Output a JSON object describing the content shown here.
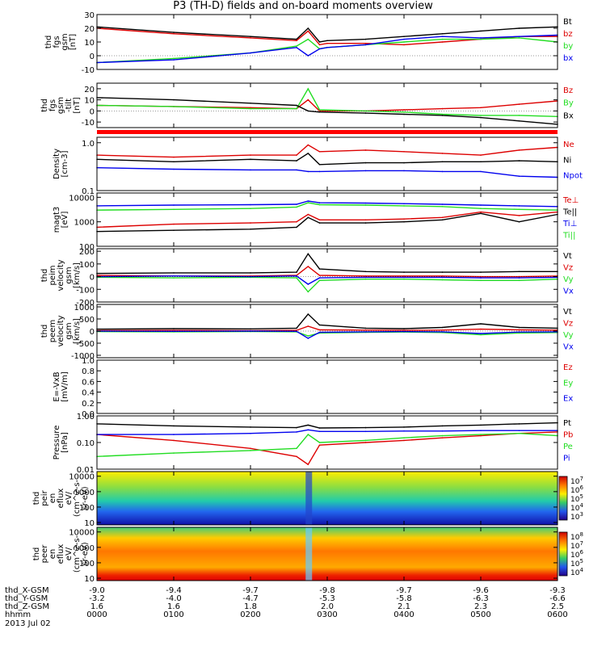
{
  "title": "P3 (TH-D) fields and on-board moments overview",
  "colors": {
    "black": "#000000",
    "red": "#dd0000",
    "green": "#22dd22",
    "blue": "#0000ee",
    "bar": "#ff0000"
  },
  "chart_data": [
    {
      "type": "line",
      "ylabel": [
        "thd",
        "fgs",
        "gsm",
        "[nT]"
      ],
      "ylim": [
        -10,
        30
      ],
      "yticks": [
        "30",
        "20",
        "10",
        "0",
        "-10"
      ],
      "legend": [
        "Bt",
        "bz",
        "by",
        "bx"
      ],
      "legend_colors": [
        "black",
        "red",
        "green",
        "blue"
      ],
      "series": [
        {
          "name": "Bt",
          "color": "black",
          "x": [
            0,
            1,
            2,
            2.6,
            2.75,
            2.9,
            3.0,
            3.5,
            4,
            4.5,
            5,
            5.5,
            6
          ],
          "y": [
            21,
            17,
            14,
            12,
            20,
            10,
            11,
            12,
            14,
            16,
            18,
            20,
            21
          ]
        },
        {
          "name": "bz",
          "color": "red",
          "x": [
            0,
            1,
            2,
            2.6,
            2.75,
            2.9,
            3.0,
            3.5,
            4,
            4.5,
            5,
            5.5,
            6
          ],
          "y": [
            20,
            16,
            13,
            11,
            18,
            8,
            9,
            9,
            8,
            10,
            12,
            14,
            14
          ]
        },
        {
          "name": "by",
          "color": "green",
          "x": [
            0,
            1,
            2,
            2.6,
            2.75,
            2.9,
            3.0,
            3.5,
            4,
            4.5,
            5,
            5.5,
            6
          ],
          "y": [
            -5,
            -2,
            2,
            7,
            12,
            5,
            6,
            8,
            10,
            12,
            12,
            13,
            10
          ]
        },
        {
          "name": "bx",
          "color": "blue",
          "x": [
            0,
            1,
            2,
            2.6,
            2.75,
            2.9,
            3.0,
            3.5,
            4,
            4.5,
            5,
            5.5,
            6
          ],
          "y": [
            -5,
            -3,
            2,
            6,
            0,
            5,
            6,
            8,
            12,
            14,
            13,
            14,
            15
          ]
        }
      ]
    },
    {
      "type": "line",
      "ylabel": [
        "thd",
        "fgs",
        "gsm",
        "-tilt",
        "[nT]"
      ],
      "ylim": [
        -15,
        25
      ],
      "yticks": [
        "20",
        "10",
        "0",
        "-10"
      ],
      "legend": [
        "Bz",
        "By",
        "Bx"
      ],
      "legend_colors": [
        "red",
        "green",
        "black"
      ],
      "series": [
        {
          "name": "Bz",
          "color": "red",
          "x": [
            0,
            1,
            2,
            2.6,
            2.75,
            2.9,
            3.5,
            4,
            4.5,
            5,
            5.5,
            6
          ],
          "y": [
            5,
            4,
            3,
            2,
            10,
            0,
            0,
            1,
            2,
            3,
            6,
            9
          ]
        },
        {
          "name": "By",
          "color": "green",
          "x": [
            0,
            1,
            2,
            2.6,
            2.75,
            2.9,
            3.5,
            4,
            4.5,
            5,
            5.5,
            6
          ],
          "y": [
            5,
            4,
            2,
            2,
            20,
            1,
            0,
            -1,
            -3,
            -4,
            -4,
            -5
          ]
        },
        {
          "name": "Bx",
          "color": "black",
          "x": [
            0,
            1,
            2,
            2.6,
            2.75,
            2.9,
            3.5,
            4,
            4.5,
            5,
            5.5,
            6
          ],
          "y": [
            12,
            10,
            7,
            5,
            0,
            -1,
            -2,
            -3,
            -4,
            -6,
            -9,
            -12
          ]
        }
      ]
    },
    {
      "type": "line",
      "ylabel": [
        "Density",
        "[cm-3]"
      ],
      "ylog": true,
      "ylim": [
        0.1,
        1.3
      ],
      "yticks": [
        "1.0",
        "0.1"
      ],
      "legend": [
        "Ne",
        "Ni",
        "Npot"
      ],
      "legend_colors": [
        "red",
        "black",
        "blue"
      ],
      "series": [
        {
          "name": "Ne",
          "color": "red",
          "x": [
            0,
            1,
            2,
            2.6,
            2.75,
            2.9,
            3.5,
            4,
            4.5,
            5,
            5.5,
            6
          ],
          "y": [
            0.55,
            0.5,
            0.55,
            0.55,
            0.9,
            0.65,
            0.7,
            0.65,
            0.6,
            0.55,
            0.7,
            0.8
          ]
        },
        {
          "name": "Ni",
          "color": "black",
          "x": [
            0,
            1,
            2,
            2.6,
            2.75,
            2.9,
            3.5,
            4,
            4.5,
            5,
            5.5,
            6
          ],
          "y": [
            0.45,
            0.4,
            0.45,
            0.42,
            0.6,
            0.35,
            0.38,
            0.38,
            0.4,
            0.4,
            0.42,
            0.4
          ]
        },
        {
          "name": "Npot",
          "color": "blue",
          "x": [
            0,
            1,
            2,
            2.6,
            2.75,
            2.9,
            3.5,
            4,
            4.5,
            5,
            5.5,
            6
          ],
          "y": [
            0.3,
            0.28,
            0.27,
            0.27,
            0.25,
            0.25,
            0.26,
            0.26,
            0.25,
            0.25,
            0.2,
            0.19
          ]
        }
      ]
    },
    {
      "type": "line",
      "ylabel": [
        "magt3",
        "[eV]"
      ],
      "ylog": true,
      "ylim": [
        100,
        15000
      ],
      "yticks": [
        "10000",
        "1000",
        "100"
      ],
      "legend": [
        "Te⊥",
        "Te||",
        "Ti⊥",
        "Ti||"
      ],
      "legend_colors": [
        "red",
        "black",
        "blue",
        "green"
      ],
      "series": [
        {
          "name": "Te⊥",
          "color": "red",
          "x": [
            0,
            1,
            2,
            2.6,
            2.75,
            2.9,
            3.5,
            4,
            4.5,
            5,
            5.5,
            6
          ],
          "y": [
            600,
            800,
            900,
            1000,
            2000,
            1200,
            1200,
            1300,
            1500,
            2500,
            1800,
            2500
          ]
        },
        {
          "name": "Te||",
          "color": "black",
          "x": [
            0,
            1,
            2,
            2.6,
            2.75,
            2.9,
            3.5,
            4,
            4.5,
            5,
            5.5,
            6
          ],
          "y": [
            400,
            450,
            500,
            600,
            1500,
            900,
            900,
            1000,
            1200,
            2200,
            1000,
            2000
          ]
        },
        {
          "name": "Ti⊥",
          "color": "blue",
          "x": [
            0,
            1,
            2,
            2.6,
            2.75,
            2.9,
            3.5,
            4,
            4.5,
            5,
            5.5,
            6
          ],
          "y": [
            4500,
            4800,
            5000,
            5200,
            7000,
            6000,
            5800,
            5500,
            5200,
            4800,
            4500,
            4200
          ]
        },
        {
          "name": "Ti||",
          "color": "green",
          "x": [
            0,
            1,
            2,
            2.6,
            2.75,
            2.9,
            3.5,
            4,
            4.5,
            5,
            5.5,
            6
          ],
          "y": [
            3000,
            3200,
            3500,
            4000,
            6000,
            5000,
            4800,
            4500,
            4200,
            3500,
            3200,
            3000
          ]
        }
      ]
    },
    {
      "type": "line",
      "ylabel": [
        "thd",
        "peim",
        "velocity",
        "gsm",
        "[km/s]"
      ],
      "ylim": [
        -200,
        220
      ],
      "yticks": [
        "200",
        "100",
        "0",
        "-100",
        "-200"
      ],
      "legend": [
        "Vt",
        "Vz",
        "Vy",
        "Vx"
      ],
      "legend_colors": [
        "black",
        "red",
        "green",
        "blue"
      ],
      "series": [
        {
          "name": "Vt",
          "color": "black",
          "x": [
            0,
            1,
            2,
            2.6,
            2.75,
            2.9,
            3.5,
            4,
            4.5,
            5,
            5.5,
            6
          ],
          "y": [
            25,
            30,
            30,
            35,
            180,
            60,
            40,
            35,
            35,
            35,
            40,
            40
          ]
        },
        {
          "name": "Vz",
          "color": "red",
          "x": [
            0,
            1,
            2,
            2.6,
            2.75,
            2.9,
            3.5,
            4,
            4.5,
            5,
            5.5,
            6
          ],
          "y": [
            10,
            5,
            5,
            10,
            80,
            10,
            5,
            5,
            5,
            0,
            0,
            5
          ]
        },
        {
          "name": "Vy",
          "color": "green",
          "x": [
            0,
            1,
            2,
            2.6,
            2.75,
            2.9,
            3.5,
            4,
            4.5,
            5,
            5.5,
            6
          ],
          "y": [
            -5,
            -10,
            -5,
            -10,
            -120,
            -30,
            -20,
            -20,
            -25,
            -30,
            -30,
            -20
          ]
        },
        {
          "name": "Vx",
          "color": "blue",
          "x": [
            0,
            1,
            2,
            2.6,
            2.75,
            2.9,
            3.5,
            4,
            4.5,
            5,
            5.5,
            6
          ],
          "y": [
            0,
            5,
            0,
            5,
            -60,
            -10,
            -5,
            -5,
            -5,
            -10,
            -10,
            -5
          ]
        }
      ]
    },
    {
      "type": "line",
      "ylabel": [
        "thd",
        "peem",
        "velocity",
        "gsm",
        "[km/s]"
      ],
      "ylim": [
        -1100,
        1100
      ],
      "yticks": [
        "1000",
        "500",
        "0",
        "-500",
        "-1000"
      ],
      "legend": [
        "Vt",
        "Vz",
        "Vy",
        "Vx"
      ],
      "legend_colors": [
        "black",
        "red",
        "green",
        "blue"
      ],
      "series": [
        {
          "name": "Vt",
          "color": "black",
          "x": [
            0,
            1,
            2,
            2.6,
            2.75,
            2.9,
            3.5,
            4,
            4.5,
            5,
            5.5,
            6
          ],
          "y": [
            80,
            100,
            90,
            120,
            700,
            250,
            120,
            100,
            150,
            300,
            150,
            120
          ]
        },
        {
          "name": "Vz",
          "color": "red",
          "x": [
            0,
            1,
            2,
            2.6,
            2.75,
            2.9,
            3.5,
            4,
            4.5,
            5,
            5.5,
            6
          ],
          "y": [
            20,
            30,
            20,
            30,
            200,
            50,
            40,
            30,
            40,
            80,
            50,
            40
          ]
        },
        {
          "name": "Vy",
          "color": "green",
          "x": [
            0,
            1,
            2,
            2.6,
            2.75,
            2.9,
            3.5,
            4,
            4.5,
            5,
            5.5,
            6
          ],
          "y": [
            -20,
            -30,
            -20,
            -30,
            -200,
            -80,
            -50,
            -40,
            -60,
            -150,
            -80,
            -60
          ]
        },
        {
          "name": "Vx",
          "color": "blue",
          "x": [
            0,
            1,
            2,
            2.6,
            2.75,
            2.9,
            3.5,
            4,
            4.5,
            5,
            5.5,
            6
          ],
          "y": [
            0,
            -10,
            0,
            -10,
            -300,
            -50,
            -30,
            -20,
            -30,
            -100,
            -40,
            -30
          ]
        }
      ]
    },
    {
      "type": "line",
      "ylabel": [
        "E=-VxB",
        "[mV/m]"
      ],
      "ylim": [
        0,
        1
      ],
      "yticks": [
        "1.0",
        "0.8",
        "0.6",
        "0.4",
        "0.2",
        "0.0"
      ],
      "legend": [
        "Ez",
        "Ey",
        "Ex"
      ],
      "legend_colors": [
        "red",
        "green",
        "blue"
      ],
      "series": []
    },
    {
      "type": "line",
      "ylabel": [
        "Pressure",
        "[nPa]"
      ],
      "ylog": true,
      "ylim": [
        0.01,
        1.0
      ],
      "yticks": [
        "1.00",
        "0.10",
        "0.01"
      ],
      "legend": [
        "Pt",
        "Pb",
        "Pe",
        "Pi"
      ],
      "legend_colors": [
        "black",
        "red",
        "green",
        "blue"
      ],
      "series": [
        {
          "name": "Pt",
          "color": "black",
          "x": [
            0,
            1,
            2,
            2.6,
            2.75,
            2.9,
            3.5,
            4,
            4.5,
            5,
            5.5,
            6
          ],
          "y": [
            0.5,
            0.42,
            0.38,
            0.36,
            0.45,
            0.35,
            0.36,
            0.38,
            0.42,
            0.45,
            0.5,
            0.55
          ]
        },
        {
          "name": "Pb",
          "color": "red",
          "x": [
            0,
            1,
            2,
            2.6,
            2.75,
            2.9,
            3.5,
            4,
            4.5,
            5,
            5.5,
            6
          ],
          "y": [
            0.2,
            0.12,
            0.06,
            0.03,
            0.015,
            0.08,
            0.1,
            0.12,
            0.15,
            0.18,
            0.22,
            0.25
          ]
        },
        {
          "name": "Pe",
          "color": "green",
          "x": [
            0,
            1,
            2,
            2.6,
            2.75,
            2.9,
            3.5,
            4,
            4.5,
            5,
            5.5,
            6
          ],
          "y": [
            0.03,
            0.04,
            0.05,
            0.06,
            0.2,
            0.1,
            0.12,
            0.15,
            0.18,
            0.2,
            0.22,
            0.18
          ]
        },
        {
          "name": "Pi",
          "color": "blue",
          "x": [
            0,
            1,
            2,
            2.6,
            2.75,
            2.9,
            3.5,
            4,
            4.5,
            5,
            5.5,
            6
          ],
          "y": [
            0.2,
            0.2,
            0.22,
            0.25,
            0.3,
            0.26,
            0.26,
            0.27,
            0.27,
            0.28,
            0.28,
            0.28
          ]
        }
      ]
    },
    {
      "type": "heatmap",
      "ylabel": [
        "thd",
        "peir",
        "en",
        "eflux",
        "eV/",
        "(cm^2-s-",
        "sr-eV)"
      ],
      "ylog": true,
      "ylim": [
        7,
        20000
      ],
      "yticks": [
        "10000",
        "1000",
        "100",
        "10"
      ],
      "colorbar": [
        "10^7",
        "10^6",
        "10^5",
        "10^4",
        "10^3"
      ]
    },
    {
      "type": "heatmap",
      "ylabel": [
        "thd",
        "peer",
        "en",
        "eflux",
        "eV/",
        "(cm^2-s-",
        "sr-eV)"
      ],
      "ylog": true,
      "ylim": [
        7,
        20000
      ],
      "yticks": [
        "10000",
        "1000",
        "100",
        "10"
      ],
      "colorbar": [
        "10^8",
        "10^7",
        "10^6",
        "10^5",
        "10^4"
      ]
    }
  ],
  "xaxis": {
    "xlim": [
      0,
      6
    ],
    "row_labels": [
      "thd_X-GSM",
      "thd_Y-GSM",
      "thd_Z-GSM",
      "hhmm",
      "2013 Jul 02"
    ],
    "columns": [
      {
        "x": 0.0,
        "vals": [
          "-9.0",
          "-3.2",
          "1.6",
          "0000"
        ]
      },
      {
        "x": 1.0,
        "vals": [
          "-9.4",
          "-4.0",
          "1.6",
          "0100"
        ]
      },
      {
        "x": 2.0,
        "vals": [
          "-9.7",
          "-4.7",
          "1.8",
          "0200"
        ]
      },
      {
        "x": 3.0,
        "vals": [
          "-9.8",
          "-5.3",
          "2.0",
          "0300"
        ]
      },
      {
        "x": 4.0,
        "vals": [
          "-9.7",
          "-5.8",
          "2.1",
          "0400"
        ]
      },
      {
        "x": 5.0,
        "vals": [
          "-9.6",
          "-6.3",
          "2.3",
          "0500"
        ]
      },
      {
        "x": 6.0,
        "vals": [
          "-9.3",
          "-6.6",
          "2.5",
          "0600"
        ]
      }
    ]
  }
}
